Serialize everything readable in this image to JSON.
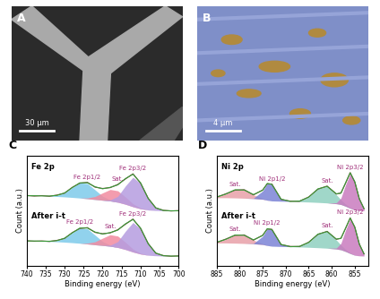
{
  "images": [
    {
      "label": "A",
      "type": "image",
      "scale_bar": "30 μm"
    },
    {
      "label": "B",
      "type": "image",
      "scale_bar": "4 μm"
    }
  ],
  "chart_data": [
    {
      "label": "C",
      "type": "line",
      "title": "Fe 2p",
      "x_label": "Binding energy (eV)",
      "y_label": "Count (a.u.)",
      "xlim": [
        740,
        700
      ],
      "xticks": [
        740,
        735,
        730,
        725,
        720,
        715,
        710,
        705,
        700
      ],
      "ylim": [
        0,
        11
      ],
      "tick_labels": "x",
      "x": [
        740,
        738,
        736,
        734,
        732,
        730,
        728,
        726,
        724,
        722,
        720,
        718,
        716,
        714,
        712,
        710,
        708,
        706,
        704,
        702,
        700
      ],
      "spectra": [
        {
          "background": [
            7.0,
            7.0,
            6.98,
            6.95,
            6.92,
            6.88,
            6.83,
            6.77,
            6.7,
            6.62,
            6.55,
            6.48,
            6.35,
            6.15,
            5.9,
            5.7,
            5.58,
            5.53,
            5.5,
            5.5,
            5.5
          ],
          "components": [
            {
              "name": "Fe 2p1/2",
              "color": "#7ecbea",
              "values": [
                7.0,
                7.0,
                6.98,
                6.97,
                7.03,
                7.28,
                7.8,
                8.28,
                8.21,
                7.59,
                6.95,
                6.59,
                6.35,
                6.15,
                5.9,
                5.7,
                5.58,
                5.53,
                5.5,
                5.5,
                5.5
              ]
            },
            {
              "name": "Sat.",
              "color": "#f28ba0",
              "values": [
                7.0,
                7.0,
                6.98,
                6.95,
                6.92,
                6.88,
                6.83,
                6.77,
                6.78,
                6.92,
                7.28,
                7.62,
                7.49,
                6.88,
                6.2,
                5.78,
                5.59,
                5.53,
                5.5,
                5.5,
                5.5
              ]
            },
            {
              "name": "Fe 2p3/2",
              "color": "#b59de0",
              "values": [
                7.0,
                7.0,
                6.98,
                6.95,
                6.92,
                6.88,
                6.83,
                6.77,
                6.7,
                6.62,
                6.56,
                6.58,
                6.94,
                7.97,
                8.84,
                8.2,
                6.71,
                5.8,
                5.53,
                5.5,
                5.5
              ]
            }
          ],
          "fit": {
            "color": "#3a9a3a",
            "values": [
              7.0,
              7.0,
              6.98,
              6.97,
              7.03,
              7.28,
              7.8,
              8.28,
              8.29,
              7.89,
              7.69,
              7.83,
              8.08,
              8.7,
              9.14,
              8.28,
              6.72,
              5.8,
              5.53,
              5.5,
              5.5
            ]
          },
          "data": {
            "color": "#7a4a3a",
            "values": [
              7.03,
              6.96,
              7.01,
              6.94,
              7.07,
              7.25,
              7.83,
              8.24,
              8.33,
              7.85,
              7.72,
              7.8,
              8.12,
              8.66,
              9.18,
              8.24,
              6.75,
              5.78,
              5.55,
              5.48,
              5.52
            ]
          }
        },
        {
          "name": "After i-t",
          "background": [
            2.5,
            2.5,
            2.48,
            2.45,
            2.42,
            2.38,
            2.33,
            2.27,
            2.2,
            2.12,
            2.05,
            1.98,
            1.85,
            1.65,
            1.4,
            1.2,
            1.08,
            1.03,
            1.0,
            1.0,
            1.0
          ],
          "components": [
            {
              "name": "Fe 2p1/2",
              "color": "#7ecbea",
              "values": [
                2.5,
                2.5,
                2.48,
                2.47,
                2.53,
                2.78,
                3.3,
                3.78,
                3.71,
                3.09,
                2.45,
                2.09,
                1.85,
                1.65,
                1.4,
                1.2,
                1.08,
                1.03,
                1.0,
                1.0,
                1.0
              ]
            },
            {
              "name": "Sat.",
              "color": "#f28ba0",
              "values": [
                2.5,
                2.5,
                2.48,
                2.45,
                2.42,
                2.38,
                2.33,
                2.27,
                2.28,
                2.42,
                2.78,
                3.12,
                2.99,
                2.38,
                1.7,
                1.28,
                1.09,
                1.03,
                1.0,
                1.0,
                1.0
              ]
            },
            {
              "name": "Fe 2p3/2",
              "color": "#b59de0",
              "values": [
                2.5,
                2.5,
                2.48,
                2.45,
                2.42,
                2.38,
                2.33,
                2.27,
                2.2,
                2.12,
                2.06,
                2.08,
                2.44,
                3.47,
                4.34,
                3.7,
                2.21,
                1.3,
                1.03,
                1.0,
                1.0
              ]
            }
          ],
          "fit": {
            "color": "#3a9a3a",
            "values": [
              2.5,
              2.5,
              2.48,
              2.47,
              2.53,
              2.78,
              3.3,
              3.78,
              3.79,
              3.39,
              3.19,
              3.33,
              3.58,
              4.2,
              4.64,
              3.78,
              2.22,
              1.3,
              1.03,
              1.0,
              1.0
            ]
          },
          "data": {
            "color": "#7a4a3a",
            "values": [
              2.52,
              2.47,
              2.5,
              2.45,
              2.56,
              2.75,
              3.33,
              3.74,
              3.83,
              3.35,
              3.22,
              3.3,
              3.62,
              4.16,
              4.68,
              3.74,
              2.25,
              1.28,
              1.05,
              0.98,
              1.02
            ]
          }
        }
      ]
    },
    {
      "label": "D",
      "type": "line",
      "title": "Ni 2p",
      "x_label": "Binding energy (eV)",
      "y_label": "Count (a.u.)",
      "xlim": [
        885,
        852
      ],
      "xticks": [
        885,
        880,
        875,
        870,
        865,
        860,
        855
      ],
      "ylim": [
        0,
        11
      ],
      "tick_labels": "x",
      "x": [
        885,
        883,
        881,
        879,
        877,
        875,
        874,
        873,
        871,
        869,
        867,
        865,
        863,
        861,
        859,
        858,
        857,
        856,
        855,
        854,
        853
      ],
      "spectra": [
        {
          "background": [
            6.8,
            6.8,
            6.78,
            6.75,
            6.72,
            6.65,
            6.55,
            6.48,
            6.45,
            6.43,
            6.4,
            6.37,
            6.33,
            6.28,
            6.2,
            6.12,
            5.95,
            5.75,
            5.58,
            5.52,
            5.5
          ],
          "components": [
            {
              "name": "Sat.",
              "color": "#e8a0a8",
              "values": [
                6.87,
                7.16,
                7.59,
                7.56,
                7.08,
                6.72,
                6.57,
                6.48,
                6.45,
                6.43,
                6.4,
                6.37,
                6.33,
                6.28,
                6.2,
                6.12,
                5.95,
                5.75,
                5.58,
                5.52,
                5.5
              ]
            },
            {
              "name": "Ni 2p1/2",
              "color": "#7b84d6",
              "values": [
                6.8,
                6.8,
                6.78,
                6.75,
                6.75,
                7.47,
                8.2,
                8.13,
                6.66,
                6.43,
                6.4,
                6.37,
                6.33,
                6.28,
                6.2,
                6.12,
                5.95,
                5.75,
                5.58,
                5.52,
                5.5
              ]
            },
            {
              "name": "Sat.",
              "color": "#8fd0c0",
              "values": [
                6.8,
                6.8,
                6.78,
                6.75,
                6.72,
                6.65,
                6.55,
                6.48,
                6.45,
                6.43,
                6.47,
                6.85,
                7.68,
                7.93,
                7.09,
                6.6,
                6.16,
                5.82,
                5.6,
                5.52,
                5.5
              ]
            },
            {
              "name": "Ni 2p3/2",
              "color": "#c97bbf",
              "values": [
                6.8,
                6.8,
                6.78,
                6.75,
                6.72,
                6.65,
                6.55,
                6.48,
                6.45,
                6.43,
                6.4,
                6.37,
                6.33,
                6.28,
                6.3,
                6.77,
                8.07,
                9.2,
                8.38,
                6.66,
                5.73
              ]
            }
          ],
          "fit": {
            "color": "#3a9a3a",
            "values": [
              6.87,
              7.16,
              7.59,
              7.56,
              7.11,
              7.54,
              8.22,
              8.13,
              6.66,
              6.43,
              6.47,
              6.85,
              7.68,
              7.93,
              7.19,
              7.25,
              8.28,
              9.27,
              8.4,
              6.66,
              5.73
            ]
          },
          "data": {
            "color": "#7a4a3a",
            "values": [
              6.85,
              7.19,
              7.55,
              7.6,
              7.08,
              7.57,
              8.18,
              8.16,
              6.63,
              6.46,
              6.44,
              6.88,
              7.65,
              7.96,
              7.16,
              7.28,
              8.24,
              9.3,
              8.36,
              6.69,
              5.71
            ]
          }
        },
        {
          "name": "After i-t",
          "background": [
            2.3,
            2.3,
            2.28,
            2.25,
            2.22,
            2.15,
            2.05,
            1.98,
            1.95,
            1.93,
            1.9,
            1.87,
            1.83,
            1.78,
            1.7,
            1.62,
            1.45,
            1.25,
            1.08,
            1.02,
            1.0
          ],
          "components": [
            {
              "name": "Sat.",
              "color": "#e8a0a8",
              "values": [
                2.37,
                2.66,
                3.09,
                3.06,
                2.58,
                2.22,
                2.07,
                1.98,
                1.95,
                1.93,
                1.9,
                1.87,
                1.83,
                1.78,
                1.7,
                1.62,
                1.45,
                1.25,
                1.08,
                1.02,
                1.0
              ]
            },
            {
              "name": "Ni 2p1/2",
              "color": "#7b84d6",
              "values": [
                2.3,
                2.3,
                2.28,
                2.25,
                2.25,
                2.97,
                3.7,
                3.63,
                2.16,
                1.93,
                1.9,
                1.87,
                1.83,
                1.78,
                1.7,
                1.62,
                1.45,
                1.25,
                1.08,
                1.02,
                1.0
              ]
            },
            {
              "name": "Sat.",
              "color": "#8fd0c0",
              "values": [
                2.3,
                2.3,
                2.28,
                2.25,
                2.22,
                2.15,
                2.05,
                1.98,
                1.95,
                1.93,
                1.97,
                2.35,
                3.18,
                3.43,
                2.59,
                2.1,
                1.66,
                1.32,
                1.1,
                1.02,
                1.0
              ]
            },
            {
              "name": "Ni 2p3/2",
              "color": "#c97bbf",
              "values": [
                2.3,
                2.3,
                2.28,
                2.25,
                2.22,
                2.15,
                2.05,
                1.98,
                1.95,
                1.93,
                1.9,
                1.87,
                1.83,
                1.78,
                1.8,
                2.27,
                3.57,
                4.7,
                3.88,
                2.16,
                1.23
              ]
            }
          ],
          "fit": {
            "color": "#3a9a3a",
            "values": [
              2.37,
              2.66,
              3.09,
              3.06,
              2.61,
              3.04,
              3.72,
              3.63,
              2.16,
              1.93,
              1.97,
              2.35,
              3.18,
              3.43,
              2.69,
              2.75,
              3.78,
              4.77,
              3.9,
              2.16,
              1.23
            ]
          },
          "data": {
            "color": "#7a4a3a",
            "values": [
              2.34,
              2.69,
              3.06,
              3.1,
              2.58,
              3.07,
              3.69,
              3.66,
              2.13,
              1.96,
              1.94,
              2.38,
              3.15,
              3.46,
              2.66,
              2.78,
              3.74,
              4.8,
              3.86,
              2.19,
              1.21
            ]
          }
        }
      ]
    }
  ]
}
